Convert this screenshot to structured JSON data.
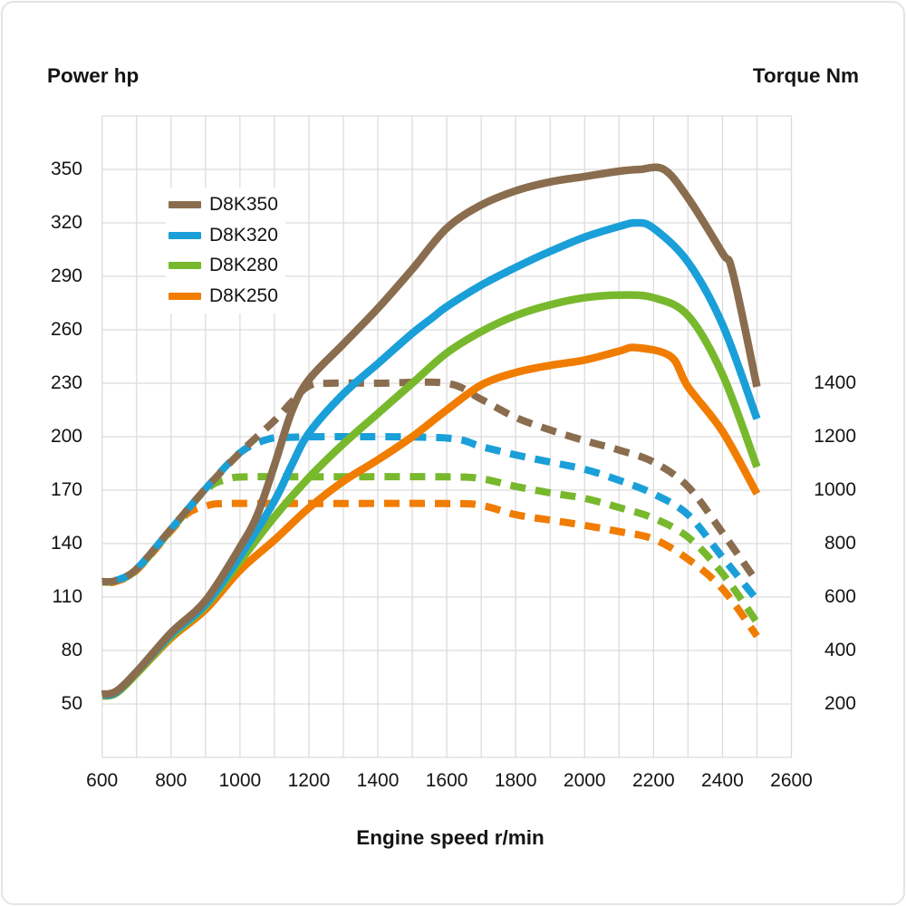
{
  "chart_data": {
    "type": "line",
    "title_left": "Power hp",
    "title_right": "Torque Nm",
    "xlabel": "Engine speed r/min",
    "x_axis": {
      "min": 600,
      "max": 2600,
      "grid_step": 100,
      "ticks": [
        600,
        800,
        1000,
        1200,
        1400,
        1600,
        1800,
        2000,
        2200,
        2400,
        2600
      ]
    },
    "left_axis": {
      "unit": "hp",
      "ticks": [
        350,
        320,
        290,
        260,
        230,
        200,
        170,
        140,
        110,
        80,
        50
      ],
      "grid_min": 20,
      "grid_max": 380,
      "grid_step": 30
    },
    "right_axis": {
      "unit": "Nm",
      "ticks": [
        1400,
        1200,
        1000,
        800,
        600,
        400,
        200
      ]
    },
    "grid": {
      "on": true,
      "color": "#dcdcdc"
    },
    "line_styles": {
      "power": "solid",
      "torque": "dashed"
    },
    "legend_position": "top-left-inside",
    "series": [
      {
        "name": "D8K350",
        "color": "#8a6d4f",
        "dash_offset": 0,
        "power_hp": [
          [
            600,
            55.5
          ],
          [
            640,
            57
          ],
          [
            700,
            68
          ],
          [
            800,
            90
          ],
          [
            900,
            108
          ],
          [
            1000,
            138
          ],
          [
            1050,
            156
          ],
          [
            1100,
            184
          ],
          [
            1150,
            214
          ],
          [
            1200,
            232
          ],
          [
            1300,
            252
          ],
          [
            1400,
            272
          ],
          [
            1500,
            294
          ],
          [
            1600,
            317
          ],
          [
            1700,
            330
          ],
          [
            1800,
            338
          ],
          [
            1900,
            343
          ],
          [
            2000,
            346
          ],
          [
            2100,
            349
          ],
          [
            2160,
            350
          ],
          [
            2230,
            350
          ],
          [
            2300,
            334
          ],
          [
            2400,
            303
          ],
          [
            2430,
            292
          ],
          [
            2500,
            228
          ]
        ],
        "torque_nm": [
          [
            600,
            658
          ],
          [
            640,
            662
          ],
          [
            700,
            705
          ],
          [
            800,
            855
          ],
          [
            900,
            1005
          ],
          [
            1000,
            1140
          ],
          [
            1100,
            1260
          ],
          [
            1150,
            1330
          ],
          [
            1200,
            1390
          ],
          [
            1260,
            1400
          ],
          [
            1400,
            1400
          ],
          [
            1600,
            1400
          ],
          [
            1700,
            1340
          ],
          [
            1800,
            1272
          ],
          [
            1900,
            1225
          ],
          [
            2000,
            1185
          ],
          [
            2100,
            1150
          ],
          [
            2200,
            1105
          ],
          [
            2300,
            1013
          ],
          [
            2400,
            841
          ],
          [
            2500,
            657
          ]
        ]
      },
      {
        "name": "D8K320",
        "color": "#1a9fd8",
        "dash_offset": 14,
        "power_hp": [
          [
            600,
            55
          ],
          [
            640,
            56.5
          ],
          [
            700,
            68
          ],
          [
            800,
            89
          ],
          [
            900,
            106
          ],
          [
            1000,
            133
          ],
          [
            1100,
            164
          ],
          [
            1150,
            184
          ],
          [
            1200,
            202
          ],
          [
            1300,
            224
          ],
          [
            1400,
            241
          ],
          [
            1500,
            258
          ],
          [
            1560,
            267
          ],
          [
            1600,
            273
          ],
          [
            1700,
            285
          ],
          [
            1800,
            295
          ],
          [
            1900,
            304
          ],
          [
            2000,
            312
          ],
          [
            2100,
            318
          ],
          [
            2150,
            320
          ],
          [
            2200,
            317
          ],
          [
            2300,
            298
          ],
          [
            2400,
            263
          ],
          [
            2500,
            210
          ]
        ],
        "torque_nm": [
          [
            600,
            658
          ],
          [
            640,
            662
          ],
          [
            700,
            705
          ],
          [
            800,
            855
          ],
          [
            900,
            1005
          ],
          [
            1000,
            1140
          ],
          [
            1080,
            1190
          ],
          [
            1150,
            1198
          ],
          [
            1300,
            1200
          ],
          [
            1600,
            1195
          ],
          [
            1700,
            1163
          ],
          [
            1800,
            1132
          ],
          [
            1900,
            1105
          ],
          [
            2000,
            1078
          ],
          [
            2100,
            1037
          ],
          [
            2200,
            986
          ],
          [
            2300,
            908
          ],
          [
            2400,
            749
          ],
          [
            2500,
            590
          ]
        ]
      },
      {
        "name": "D8K280",
        "color": "#78b82d",
        "dash_offset": 5,
        "power_hp": [
          [
            600,
            54.5
          ],
          [
            640,
            56
          ],
          [
            700,
            67
          ],
          [
            800,
            88
          ],
          [
            900,
            105
          ],
          [
            1000,
            130
          ],
          [
            1100,
            155
          ],
          [
            1200,
            177
          ],
          [
            1300,
            196
          ],
          [
            1400,
            213
          ],
          [
            1500,
            230
          ],
          [
            1600,
            247
          ],
          [
            1700,
            259
          ],
          [
            1800,
            268
          ],
          [
            1900,
            274
          ],
          [
            2000,
            278
          ],
          [
            2100,
            279.5
          ],
          [
            2200,
            278
          ],
          [
            2300,
            268
          ],
          [
            2400,
            235
          ],
          [
            2500,
            183
          ]
        ],
        "torque_nm": [
          [
            600,
            656
          ],
          [
            640,
            660
          ],
          [
            700,
            702
          ],
          [
            800,
            851
          ],
          [
            900,
            1000
          ],
          [
            960,
            1040
          ],
          [
            1020,
            1050
          ],
          [
            1200,
            1050
          ],
          [
            1600,
            1050
          ],
          [
            1700,
            1043
          ],
          [
            1800,
            1014
          ],
          [
            1900,
            990
          ],
          [
            2000,
            969
          ],
          [
            2100,
            935
          ],
          [
            2200,
            895
          ],
          [
            2300,
            824
          ],
          [
            2400,
            688
          ],
          [
            2500,
            505
          ]
        ]
      },
      {
        "name": "D8K250",
        "color": "#f07c00",
        "dash_offset": 19,
        "power_hp": [
          [
            600,
            54.5
          ],
          [
            640,
            56
          ],
          [
            700,
            67
          ],
          [
            800,
            87
          ],
          [
            900,
            103
          ],
          [
            1000,
            125
          ],
          [
            1100,
            142
          ],
          [
            1200,
            160
          ],
          [
            1300,
            175
          ],
          [
            1400,
            187
          ],
          [
            1500,
            200
          ],
          [
            1600,
            215
          ],
          [
            1700,
            229
          ],
          [
            1800,
            236
          ],
          [
            1900,
            240
          ],
          [
            2000,
            243
          ],
          [
            2100,
            248
          ],
          [
            2150,
            250
          ],
          [
            2250,
            245
          ],
          [
            2300,
            228
          ],
          [
            2400,
            203
          ],
          [
            2500,
            168
          ]
        ],
        "torque_nm": [
          [
            600,
            654
          ],
          [
            640,
            658
          ],
          [
            700,
            700
          ],
          [
            800,
            848
          ],
          [
            850,
            915
          ],
          [
            900,
            940
          ],
          [
            960,
            950
          ],
          [
            1200,
            950
          ],
          [
            1600,
            950
          ],
          [
            1700,
            943
          ],
          [
            1800,
            908
          ],
          [
            1900,
            888
          ],
          [
            2000,
            868
          ],
          [
            2100,
            845
          ],
          [
            2200,
            817
          ],
          [
            2300,
            742
          ],
          [
            2400,
            631
          ],
          [
            2500,
            454
          ]
        ]
      }
    ]
  }
}
